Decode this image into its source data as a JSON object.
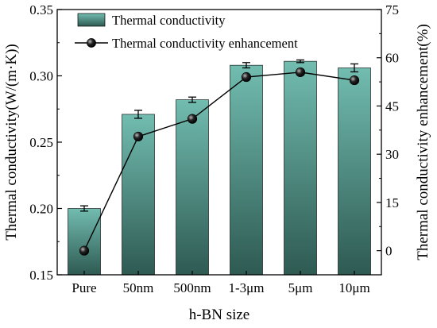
{
  "chart_data": {
    "type": "bar",
    "categories": [
      "Pure",
      "50nm",
      "500nm",
      "1-3μm",
      "5μm",
      "10μm"
    ],
    "series": [
      {
        "name": "Thermal conductivity",
        "type": "bar",
        "axis": "left",
        "values": [
          0.2,
          0.271,
          0.282,
          0.308,
          0.311,
          0.306
        ],
        "errors": [
          0.002,
          0.003,
          0.002,
          0.002,
          0.001,
          0.003
        ]
      },
      {
        "name": "Thermal conductivity enhancement",
        "type": "line",
        "axis": "right",
        "values": [
          0,
          35.5,
          41.0,
          54.0,
          55.5,
          53.0
        ]
      }
    ],
    "xlabel": "h-BN size",
    "ylabel": "Thermal conductivity(W/(m·K))",
    "y2label": "Thermal conductivity enhancement(%)",
    "ylim": [
      0.15,
      0.35
    ],
    "yticks": [
      0.15,
      0.2,
      0.25,
      0.3,
      0.35
    ],
    "ytick_labels": [
      "0.15",
      "0.20",
      "0.25",
      "0.30",
      "0.35"
    ],
    "y2lim": [
      -7.5,
      75
    ],
    "y2ticks": [
      0,
      15,
      30,
      45,
      60,
      75
    ],
    "legend_position": "top-left",
    "grid": false,
    "colors": {
      "bar_top": "#72bcb0",
      "bar_bottom": "#2e5a52",
      "line": "#000000",
      "marker": "#111111"
    }
  }
}
